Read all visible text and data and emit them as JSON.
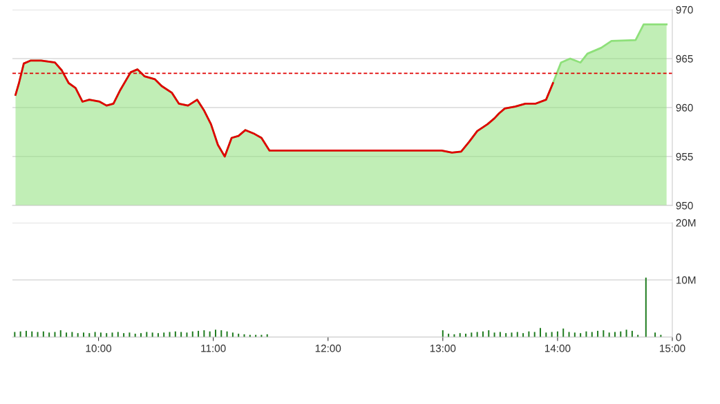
{
  "chart_data": [
    {
      "type": "area",
      "xlim": [
        9.25,
        15.0
      ],
      "ylim": [
        950,
        970
      ],
      "yticks": [
        950,
        955,
        960,
        965,
        970
      ],
      "tick_labels": "y",
      "grid": "y",
      "legend": false,
      "series": [
        {
          "color": "#8ee07a",
          "x": [
            9.277,
            9.307,
            9.349,
            9.41,
            9.5,
            9.62,
            9.68,
            9.74,
            9.8,
            9.86,
            9.92,
            10.01,
            10.07,
            10.13,
            10.19,
            10.28,
            10.34,
            10.4,
            10.49,
            10.55,
            10.64,
            10.7,
            10.78,
            10.86,
            10.92,
            10.98,
            11.04,
            11.1,
            11.16,
            11.22,
            11.28,
            11.36,
            11.42,
            11.49,
            12.99,
            13.08,
            13.16,
            13.23,
            13.3,
            13.39,
            13.45,
            13.49,
            13.54,
            13.63,
            13.72,
            13.81,
            13.9,
            13.96,
            14.03,
            14.11,
            14.2,
            14.26,
            14.38,
            14.47,
            14.68,
            14.75,
            14.95
          ],
          "values": [
            961.3,
            962.5,
            964.5,
            964.8,
            964.8,
            964.6,
            963.8,
            962.5,
            962.0,
            960.6,
            960.8,
            960.6,
            960.2,
            960.4,
            961.8,
            963.6,
            963.9,
            963.2,
            962.9,
            962.2,
            961.5,
            960.4,
            960.2,
            960.8,
            959.7,
            958.3,
            956.2,
            955.0,
            956.9,
            957.1,
            957.7,
            957.3,
            956.9,
            955.6,
            955.6,
            955.4,
            955.5,
            956.5,
            957.6,
            958.3,
            958.9,
            959.4,
            959.9,
            960.1,
            960.4,
            960.4,
            960.8,
            962.5,
            964.6,
            965.0,
            964.6,
            965.5,
            966.1,
            966.8,
            966.9,
            968.5,
            968.5
          ]
        },
        {
          "type": "line",
          "color": "#e00000",
          "x": [
            9.277,
            9.307,
            9.349,
            9.41,
            9.5,
            9.62,
            9.68,
            9.74,
            9.8,
            9.86,
            9.92,
            10.01,
            10.07,
            10.13,
            10.19,
            10.28,
            10.34,
            10.4,
            10.49,
            10.55,
            10.64,
            10.7,
            10.78,
            10.86,
            10.92,
            10.98,
            11.04,
            11.1,
            11.16,
            11.22,
            11.28,
            11.36,
            11.42,
            11.49,
            12.99,
            13.08,
            13.16,
            13.23,
            13.3,
            13.39,
            13.45,
            13.49,
            13.54,
            13.63,
            13.72,
            13.81,
            13.9,
            13.96
          ],
          "values": [
            961.3,
            962.5,
            964.5,
            964.8,
            964.8,
            964.6,
            963.8,
            962.5,
            962.0,
            960.6,
            960.8,
            960.6,
            960.2,
            960.4,
            961.8,
            963.6,
            963.9,
            963.2,
            962.9,
            962.2,
            961.5,
            960.4,
            960.2,
            960.8,
            959.7,
            958.3,
            956.2,
            955.0,
            956.9,
            957.1,
            957.7,
            957.3,
            956.9,
            955.6,
            955.6,
            955.4,
            955.5,
            956.5,
            957.6,
            958.3,
            958.9,
            959.4,
            959.9,
            960.1,
            960.4,
            960.4,
            960.8,
            962.5
          ]
        }
      ],
      "ref_lines": [
        {
          "axis": "y",
          "value": 963.5,
          "color": "#e00000",
          "line_style": "dashed"
        }
      ]
    },
    {
      "type": "bar",
      "xlim": [
        9.25,
        15.0
      ],
      "xticks": [
        {
          "value": 10,
          "label": "10:00"
        },
        {
          "value": 11,
          "label": "11:00"
        },
        {
          "value": 12,
          "label": "12:00"
        },
        {
          "value": 13,
          "label": "13:00"
        },
        {
          "value": 14,
          "label": "14:00"
        },
        {
          "value": 15,
          "label": "15:00"
        }
      ],
      "ylim": [
        0,
        20
      ],
      "yticks": [
        {
          "value": 0,
          "label": "0"
        },
        {
          "value": 10,
          "label": "10M"
        },
        {
          "value": 20,
          "label": "20M"
        }
      ],
      "grid": "y",
      "legend": false,
      "series": [
        {
          "color": "#1e7b1e",
          "x": [
            9.27,
            9.32,
            9.37,
            9.42,
            9.47,
            9.52,
            9.57,
            9.62,
            9.67,
            9.72,
            9.77,
            9.82,
            9.87,
            9.92,
            9.97,
            10.02,
            10.07,
            10.12,
            10.17,
            10.22,
            10.27,
            10.32,
            10.37,
            10.42,
            10.47,
            10.52,
            10.57,
            10.62,
            10.67,
            10.72,
            10.77,
            10.82,
            10.87,
            10.92,
            10.97,
            11.02,
            11.07,
            11.12,
            11.17,
            11.22,
            11.27,
            11.32,
            11.37,
            11.42,
            11.47,
            13.0,
            13.05,
            13.1,
            13.15,
            13.2,
            13.25,
            13.3,
            13.35,
            13.4,
            13.45,
            13.5,
            13.55,
            13.6,
            13.65,
            13.7,
            13.75,
            13.8,
            13.85,
            13.9,
            13.95,
            14.0,
            14.05,
            14.1,
            14.15,
            14.2,
            14.25,
            14.3,
            14.35,
            14.4,
            14.45,
            14.5,
            14.55,
            14.6,
            14.65,
            14.7,
            14.77,
            14.85,
            14.9
          ],
          "values": [
            0.9,
            1.0,
            1.1,
            1.0,
            0.9,
            1.0,
            0.8,
            0.9,
            1.2,
            0.8,
            0.9,
            0.7,
            0.8,
            0.7,
            0.9,
            0.8,
            0.7,
            0.8,
            0.9,
            0.7,
            0.8,
            0.6,
            0.7,
            0.9,
            0.8,
            0.7,
            0.8,
            0.9,
            1.0,
            0.9,
            0.8,
            1.0,
            1.1,
            1.2,
            1.0,
            1.3,
            1.2,
            1.0,
            0.8,
            0.6,
            0.5,
            0.4,
            0.4,
            0.4,
            0.5,
            1.2,
            0.6,
            0.5,
            0.7,
            0.6,
            0.8,
            0.9,
            1.0,
            1.2,
            0.8,
            0.9,
            0.7,
            0.8,
            0.9,
            0.7,
            1.0,
            0.9,
            1.6,
            0.8,
            0.9,
            1.0,
            1.5,
            0.9,
            0.8,
            0.7,
            1.0,
            0.9,
            1.1,
            1.2,
            0.8,
            0.9,
            1.0,
            1.3,
            1.1,
            0.4,
            10.4,
            0.8,
            0.4
          ]
        }
      ]
    }
  ]
}
